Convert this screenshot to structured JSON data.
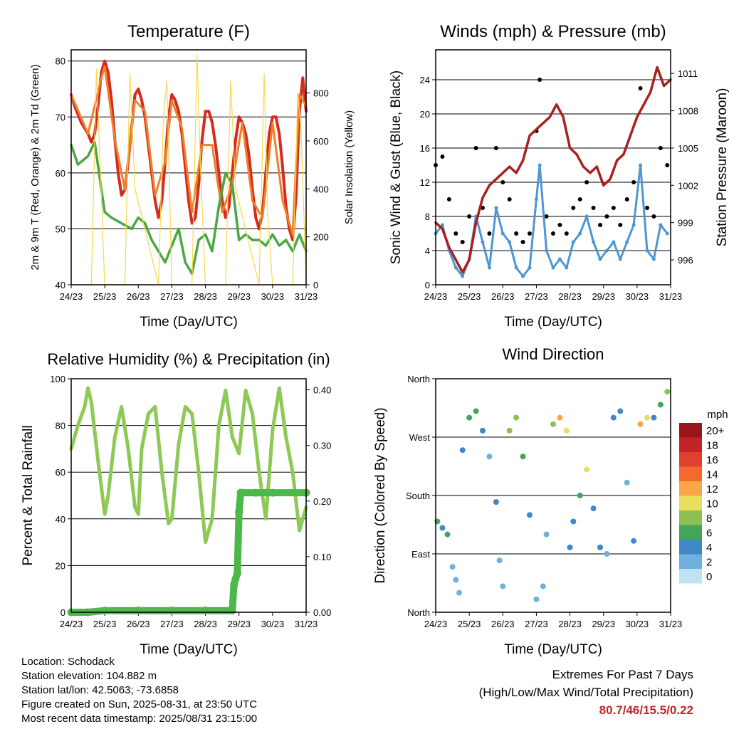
{
  "charts": {
    "temperature": {
      "title": "Temperature (F)",
      "xlabel": "Time (Day/UTC)",
      "ylabel": "2m & 9m T (Red, Orange) & 2m Td (Green)",
      "y2label": "Solar Insolation (Yellow)"
    },
    "winds": {
      "title": "Winds (mph) & Pressure (mb)",
      "xlabel": "Time (Day/UTC)",
      "ylabel": "Sonic Wind & Gust (Blue, Black)",
      "y2label": "Station Pressure (Maroon)"
    },
    "humidity": {
      "title": "Relative Humidity (%) & Precipitation (in)",
      "xlabel": "Time (Day/UTC)",
      "ylabel": "Percent & Total Rainfall"
    },
    "direction": {
      "title": "Wind Direction",
      "xlabel": "Time (Day/UTC)",
      "ylabel": "Direction (Colored By Speed)",
      "legend_title": "mph"
    }
  },
  "chart_data": [
    {
      "type": "line",
      "title": "Temperature (F)",
      "xlabel": "Time (Day/UTC)",
      "ylabel": "2m & 9m T (Red, Orange) & 2m Td (Green)",
      "y2label": "Solar Insolation (Yellow)",
      "x_ticks": [
        "24/23",
        "25/23",
        "26/23",
        "27/23",
        "28/23",
        "29/23",
        "30/23",
        "31/23"
      ],
      "xlim": [
        0,
        7
      ],
      "ylim": [
        40,
        82
      ],
      "y_ticks": [
        40,
        50,
        60,
        70,
        80
      ],
      "y2lim": [
        0,
        980
      ],
      "y2_ticks": [
        0,
        200,
        400,
        600,
        800
      ],
      "grid": true,
      "series": [
        {
          "color": "#d62a1e",
          "values_x": [
            0,
            0.1,
            0.3,
            0.5,
            0.6,
            0.7,
            0.8,
            0.9,
            1.0,
            1.1,
            1.2,
            1.3,
            1.4,
            1.5,
            1.6,
            1.7,
            1.8,
            1.9,
            2.0,
            2.1,
            2.2,
            2.3,
            2.4,
            2.5,
            2.6,
            2.7,
            2.8,
            2.9,
            3.0,
            3.1,
            3.2,
            3.3,
            3.4,
            3.5,
            3.6,
            3.7,
            3.8,
            3.9,
            4.0,
            4.1,
            4.2,
            4.3,
            4.4,
            4.5,
            4.6,
            4.7,
            4.8,
            4.9,
            5.0,
            5.1,
            5.2,
            5.3,
            5.4,
            5.5,
            5.6,
            5.7,
            5.8,
            5.9,
            6.0,
            6.1,
            6.2,
            6.3,
            6.4,
            6.5,
            6.6,
            6.7,
            6.8,
            6.9,
            7.0
          ],
          "values": [
            74,
            72,
            69,
            67,
            65.5,
            67,
            72,
            78,
            80,
            78,
            73,
            66,
            60,
            56,
            57,
            62,
            68,
            74,
            75,
            73,
            70,
            65,
            60,
            55,
            52,
            55,
            62,
            70,
            74,
            73,
            71,
            67,
            61,
            55,
            51,
            52,
            58,
            66,
            71,
            71,
            69,
            65,
            60,
            55,
            52,
            54,
            60,
            66,
            70,
            69,
            67,
            63,
            57,
            52,
            50,
            53,
            60,
            67,
            70,
            70,
            67,
            61,
            54,
            50,
            48,
            56,
            71,
            77,
            71
          ]
        },
        {
          "color": "#f07f2a",
          "values_x": [
            0,
            0.5,
            0.9,
            1.0,
            1.3,
            1.6,
            1.9,
            2.2,
            2.5,
            2.8,
            3.0,
            3.3,
            3.6,
            3.9,
            4.2,
            4.5,
            4.8,
            5.1,
            5.4,
            5.7,
            6.0,
            6.3,
            6.6,
            6.8,
            7.0
          ],
          "values": [
            74,
            67,
            77,
            79,
            66,
            57,
            73,
            71,
            56,
            62,
            73,
            68,
            53,
            65,
            65,
            53,
            58,
            69,
            55,
            52,
            69,
            55,
            49,
            74,
            72
          ]
        },
        {
          "color": "#4aa843",
          "values_x": [
            0,
            0.2,
            0.5,
            0.7,
            0.9,
            1.0,
            1.2,
            1.5,
            1.8,
            2.0,
            2.2,
            2.4,
            2.6,
            2.8,
            3.0,
            3.2,
            3.4,
            3.6,
            3.8,
            4.0,
            4.2,
            4.4,
            4.6,
            4.8,
            5.0,
            5.2,
            5.4,
            5.6,
            5.8,
            6.0,
            6.2,
            6.4,
            6.6,
            6.8,
            7.0
          ],
          "values": [
            65,
            61.5,
            63,
            65.5,
            57,
            53,
            52,
            51,
            50,
            52,
            51,
            48,
            46,
            44,
            47,
            50,
            44,
            42,
            48,
            49,
            46,
            54,
            60,
            58,
            48,
            49,
            48,
            48,
            47,
            49,
            47,
            48,
            46,
            49,
            46
          ]
        },
        {
          "color": "#f5d94a",
          "axis": "y2",
          "note": "daily insolation peaks",
          "values_x": [
            0.6,
            0.75,
            0.85,
            1.0,
            1.6,
            1.75,
            1.9,
            2.6,
            2.75,
            2.85,
            3.0,
            3.6,
            3.75,
            3.85,
            4.0,
            4.6,
            4.75,
            4.9,
            5.6,
            5.75,
            5.85,
            6.0,
            6.6,
            6.75,
            6.85,
            7.0
          ],
          "values": [
            0,
            900,
            550,
            0,
            0,
            880,
            400,
            0,
            700,
            850,
            0,
            0,
            960,
            500,
            0,
            0,
            850,
            400,
            0,
            880,
            300,
            0,
            0,
            800,
            650,
            0
          ]
        }
      ]
    },
    {
      "type": "scatter",
      "title": "Winds (mph) & Pressure (mb)",
      "xlabel": "Time (Day/UTC)",
      "ylabel": "Sonic Wind & Gust (Blue, Black)",
      "y2label": "Station Pressure (Maroon)",
      "x_ticks": [
        "24/23",
        "25/23",
        "26/23",
        "27/23",
        "28/23",
        "29/23",
        "30/23",
        "31/23"
      ],
      "xlim": [
        0,
        7
      ],
      "ylim": [
        0,
        27.5
      ],
      "y_ticks": [
        0,
        4,
        8,
        12,
        16,
        20,
        24
      ],
      "y2lim": [
        994,
        1012.9
      ],
      "y2_ticks": [
        996,
        999,
        1002,
        1005,
        1008,
        1011
      ],
      "grid": true,
      "series": [
        {
          "name": "gust",
          "color": "#000000",
          "values_x": [
            0.0,
            0.2,
            0.4,
            0.6,
            0.8,
            1.0,
            1.2,
            1.4,
            1.6,
            1.8,
            2.0,
            2.2,
            2.4,
            2.6,
            2.8,
            3.0,
            3.1,
            3.3,
            3.5,
            3.7,
            3.9,
            4.1,
            4.3,
            4.5,
            4.7,
            4.9,
            5.1,
            5.3,
            5.5,
            5.7,
            5.9,
            6.1,
            6.3,
            6.5,
            6.7,
            6.9
          ],
          "values": [
            14,
            15,
            10,
            6,
            5,
            8,
            16,
            9,
            6,
            16,
            12,
            10,
            6,
            5,
            6,
            18,
            24,
            8,
            6,
            7,
            6,
            9,
            10,
            12,
            9,
            7,
            8,
            9,
            7,
            10,
            12,
            23,
            9,
            8,
            16,
            14
          ]
        },
        {
          "name": "wind",
          "color": "#4d96d3",
          "values_x": [
            0.0,
            0.2,
            0.4,
            0.6,
            0.8,
            1.0,
            1.2,
            1.4,
            1.6,
            1.8,
            2.0,
            2.2,
            2.4,
            2.6,
            2.8,
            3.0,
            3.1,
            3.3,
            3.5,
            3.7,
            3.9,
            4.1,
            4.3,
            4.5,
            4.7,
            4.9,
            5.1,
            5.3,
            5.5,
            5.7,
            5.9,
            6.1,
            6.3,
            6.5,
            6.7,
            6.9
          ],
          "values": [
            6,
            7,
            4,
            2,
            1,
            3,
            8,
            5,
            2,
            9,
            6,
            5,
            2,
            1,
            2,
            10,
            14,
            4,
            2,
            3,
            2,
            5,
            6,
            8,
            5,
            3,
            4,
            5,
            3,
            5,
            7,
            14,
            4,
            3,
            7,
            6
          ]
        },
        {
          "name": "pressure",
          "color": "#a8211f",
          "axis": "y2",
          "values_x": [
            0,
            0.2,
            0.4,
            0.6,
            0.8,
            1.0,
            1.2,
            1.4,
            1.6,
            1.8,
            2.0,
            2.2,
            2.4,
            2.6,
            2.8,
            3.0,
            3.2,
            3.4,
            3.6,
            3.8,
            4.0,
            4.2,
            4.4,
            4.6,
            4.8,
            5.0,
            5.2,
            5.4,
            5.6,
            5.8,
            6.0,
            6.2,
            6.4,
            6.6,
            6.8,
            7.0
          ],
          "values": [
            999,
            998.5,
            997,
            996,
            995,
            996,
            999,
            1001,
            1002,
            1002.5,
            1003,
            1003.5,
            1003,
            1004,
            1006,
            1006.5,
            1007,
            1007.5,
            1008.5,
            1007.5,
            1005,
            1004.5,
            1003.5,
            1003,
            1003.5,
            1002,
            1002.5,
            1004,
            1004.5,
            1006,
            1007.5,
            1008.5,
            1009.5,
            1011.5,
            1010,
            1010.5
          ]
        }
      ]
    },
    {
      "type": "line",
      "title": "Relative Humidity (%) & Precipitation (in)",
      "xlabel": "Time (Day/UTC)",
      "ylabel": "Percent & Total Rainfall",
      "x_ticks": [
        "24/23",
        "25/23",
        "26/23",
        "27/23",
        "28/23",
        "29/23",
        "30/23",
        "31/23"
      ],
      "xlim": [
        0,
        7
      ],
      "ylim": [
        0,
        100
      ],
      "y_ticks": [
        0,
        20,
        40,
        60,
        80,
        100
      ],
      "y2lim": [
        0,
        0.42
      ],
      "y2_ticks": [
        "0.00",
        "0.10",
        "0.20",
        "0.30",
        "0.40"
      ],
      "grid": true,
      "series": [
        {
          "name": "RH",
          "color": "#8fc955",
          "values_x": [
            0,
            0.2,
            0.4,
            0.5,
            0.6,
            0.8,
            1.0,
            1.1,
            1.3,
            1.5,
            1.7,
            1.9,
            2.0,
            2.1,
            2.3,
            2.5,
            2.7,
            2.9,
            3.0,
            3.2,
            3.4,
            3.6,
            3.8,
            4.0,
            4.2,
            4.4,
            4.6,
            4.8,
            5.0,
            5.2,
            5.4,
            5.6,
            5.8,
            6.0,
            6.2,
            6.4,
            6.6,
            6.8,
            7.0
          ],
          "values": [
            70,
            80,
            88,
            96,
            90,
            65,
            42,
            50,
            75,
            88,
            70,
            45,
            42,
            70,
            85,
            88,
            60,
            38,
            40,
            72,
            88,
            85,
            60,
            30,
            40,
            80,
            95,
            75,
            68,
            95,
            85,
            60,
            40,
            78,
            96,
            75,
            60,
            35,
            45
          ]
        },
        {
          "name": "rain",
          "color": "#4cb849",
          "axis": "y2",
          "values_x": [
            0,
            0.5,
            1.0,
            2.0,
            3.0,
            4.0,
            4.8,
            4.85,
            4.9,
            4.95,
            5.0,
            5.05,
            5.1,
            5.5,
            6.0,
            7.0
          ],
          "values": [
            0,
            0,
            0.003,
            0.003,
            0.003,
            0.003,
            0.003,
            0.05,
            0.06,
            0.07,
            0.18,
            0.215,
            0.215,
            0.215,
            0.215,
            0.215
          ]
        }
      ]
    },
    {
      "type": "scatter",
      "title": "Wind Direction",
      "xlabel": "Time (Day/UTC)",
      "ylabel": "Direction (Colored By Speed)",
      "x_ticks": [
        "24/23",
        "25/23",
        "26/23",
        "27/23",
        "28/23",
        "29/23",
        "30/23",
        "31/23"
      ],
      "xlim": [
        0,
        7
      ],
      "y_ticks": [
        "North",
        "East",
        "South",
        "West",
        "North"
      ],
      "ylim": [
        0,
        360
      ],
      "grid": true,
      "legend": {
        "title": "mph",
        "placement": "right",
        "labels": [
          "20+",
          "18",
          "16",
          "14",
          "12",
          "10",
          "8",
          "6",
          "4",
          "2",
          "0"
        ],
        "colors": [
          "#99171b",
          "#c5232a",
          "#e2402f",
          "#f26a30",
          "#f9a548",
          "#e8df5f",
          "#8cc152",
          "#41a55a",
          "#3f88c5",
          "#6fb0df",
          "#bfe2f5"
        ]
      },
      "series": [
        {
          "name": "direction",
          "values_x": [
            0.05,
            0.2,
            0.35,
            0.5,
            0.6,
            0.7,
            0.8,
            1.0,
            1.2,
            1.4,
            1.6,
            1.8,
            1.9,
            2.0,
            2.2,
            2.4,
            2.6,
            2.8,
            3.0,
            3.2,
            3.3,
            3.5,
            3.7,
            3.9,
            4.0,
            4.1,
            4.3,
            4.5,
            4.7,
            4.9,
            5.1,
            5.3,
            5.5,
            5.7,
            5.9,
            6.1,
            6.3,
            6.5,
            6.7,
            6.9
          ],
          "values": [
            140,
            130,
            120,
            70,
            50,
            30,
            250,
            300,
            310,
            280,
            240,
            170,
            80,
            40,
            280,
            300,
            240,
            150,
            20,
            40,
            120,
            290,
            300,
            280,
            100,
            140,
            180,
            220,
            160,
            100,
            90,
            300,
            310,
            200,
            110,
            290,
            300,
            300,
            320,
            340
          ],
          "speeds": [
            6,
            5,
            7,
            3,
            2,
            2,
            4,
            7,
            6,
            4,
            3,
            4,
            2,
            2,
            9,
            8,
            6,
            4,
            2,
            2,
            3,
            9,
            12,
            10,
            4,
            5,
            6,
            10,
            5,
            4,
            3,
            5,
            4,
            3,
            5,
            12,
            10,
            4,
            6,
            8
          ]
        }
      ]
    }
  ],
  "info": {
    "location": "Location: Schodack",
    "elevation": "Station elevation: 104.882 m",
    "latlon": "Station lat/lon: 42.5063; -73.6858",
    "created": "Figure created on Sun, 2025-08-31, at 23:50 UTC",
    "recent": "Most recent data timestamp: 2025/08/31 23:15:00"
  },
  "extremes": {
    "line1": "Extremes For Past 7 Days",
    "line2": "(High/Low/Max Wind/Total Precipitation)",
    "values": "80.7/46/15.5/0.22"
  }
}
